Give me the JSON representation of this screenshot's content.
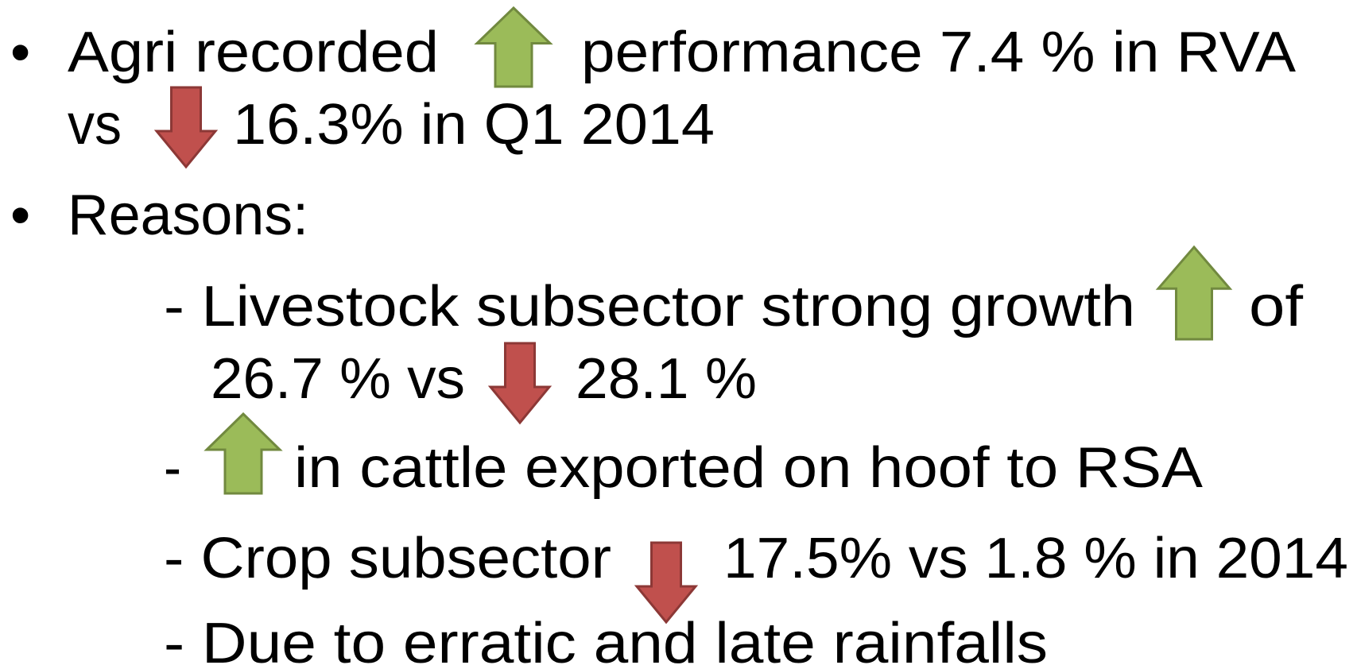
{
  "lines": [
    {
      "bullet": "•",
      "parts": [
        "Agri recorded",
        "performance 7.4 % in RVA"
      ]
    },
    {
      "parts": [
        "vs",
        "16.3% in Q1 2014"
      ]
    },
    {
      "bullet": "•",
      "parts": [
        "Reasons:"
      ]
    },
    {
      "parts": [
        "- Livestock subsector strong growth",
        "of"
      ]
    },
    {
      "parts": [
        "26.7 % vs",
        "28.1 %"
      ]
    },
    {
      "parts": [
        "-",
        "in cattle exported on hoof to RSA"
      ]
    },
    {
      "parts": [
        "- Crop subsector",
        "17.5% vs 1.8 % in 2014"
      ]
    },
    {
      "parts": [
        "- Due to erratic and late rainfalls"
      ]
    }
  ]
}
